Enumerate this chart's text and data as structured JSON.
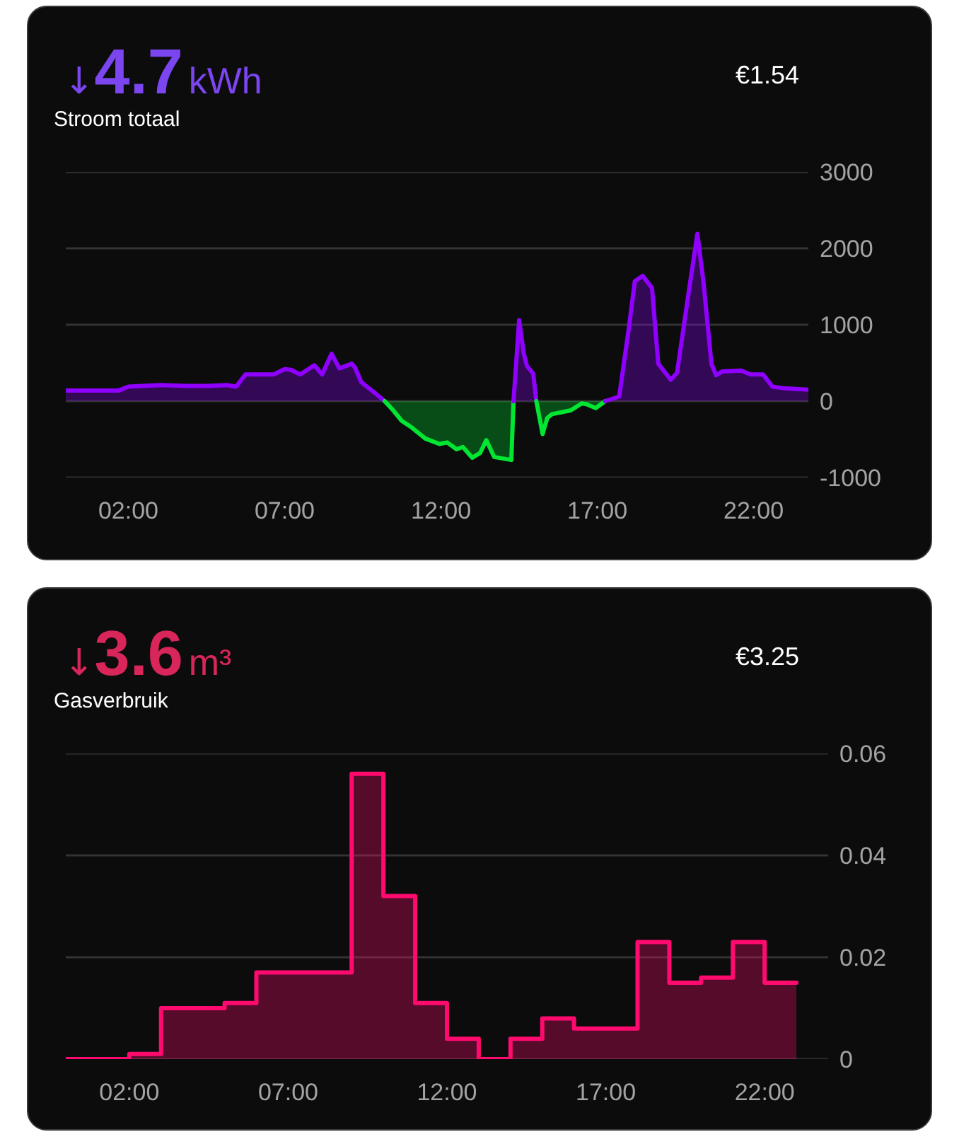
{
  "chart_data": [
    {
      "type": "area",
      "title": "Stroom totaal",
      "annotations": [
        "↓",
        "4.7",
        "kWh",
        "€1.54"
      ],
      "xlim": [
        0,
        23.75
      ],
      "xticks": [
        {
          "value": 2,
          "label": "02:00"
        },
        {
          "value": 7,
          "label": "07:00"
        },
        {
          "value": 12,
          "label": "12:00"
        },
        {
          "value": 17,
          "label": "17:00"
        },
        {
          "value": 22,
          "label": "22:00"
        }
      ],
      "ylim": [
        -1000,
        3000
      ],
      "yticks": [
        -1000,
        0,
        1000,
        2000,
        3000
      ],
      "grid": "y",
      "series": [
        {
          "color": "#8f00ff",
          "x": [
            0,
            1.7,
            2,
            2.45,
            3.05,
            3.8,
            4.55,
            5.15,
            5.45,
            5.75,
            6.65,
            7,
            7.2,
            7.5,
            7.95,
            8.2,
            8.5,
            8.75,
            9.15,
            9.25,
            9.45,
            9.85,
            10.2
          ],
          "values": [
            140,
            140,
            190,
            200,
            210,
            200,
            200,
            210,
            190,
            350,
            350,
            420,
            410,
            350,
            470,
            350,
            620,
            430,
            490,
            440,
            250,
            120,
            0
          ]
        },
        {
          "color": "#00e632",
          "x": [
            10.2,
            10.45,
            10.75,
            11.05,
            11.5,
            11.95,
            12.2,
            12.5,
            12.7,
            13,
            13.25,
            13.45,
            13.7,
            14.25,
            14.32
          ],
          "values": [
            0,
            -110,
            -260,
            -340,
            -490,
            -560,
            -540,
            -630,
            -600,
            -740,
            -680,
            -510,
            -730,
            -770,
            0
          ]
        },
        {
          "color": "#8f00ff",
          "x": [
            14.32,
            14.5,
            14.65,
            14.75,
            14.95,
            15.05
          ],
          "values": [
            0,
            1060,
            620,
            460,
            360,
            0
          ]
        },
        {
          "color": "#00e632",
          "x": [
            15.05,
            15.25,
            15.4,
            15.55,
            16.15,
            16.5,
            16.65,
            16.95,
            17.25
          ],
          "values": [
            0,
            -430,
            -220,
            -170,
            -120,
            -30,
            -40,
            -90,
            0
          ]
        },
        {
          "color": "#8f00ff",
          "x": [
            17.25,
            17.7,
            18,
            18.2,
            18.45,
            18.75,
            18.95,
            19.35,
            19.55,
            19.9,
            20.2,
            20.4,
            20.65,
            20.8,
            21,
            21.6,
            21.9,
            22.3,
            22.6,
            22.95,
            23.75
          ],
          "values": [
            0,
            60,
            930,
            1570,
            1640,
            1480,
            490,
            280,
            370,
            1360,
            2190,
            1540,
            490,
            340,
            390,
            400,
            350,
            350,
            190,
            170,
            150
          ]
        }
      ]
    },
    {
      "type": "step",
      "title": "Gasverbruik",
      "annotations": [
        "↓",
        "3.6",
        "m³",
        "€3.25"
      ],
      "x": [
        0,
        1,
        2,
        3,
        4,
        5,
        6,
        7,
        8,
        9,
        10,
        11,
        12,
        13,
        14,
        15,
        16,
        17,
        18,
        19,
        20,
        21,
        22,
        23
      ],
      "xlim": [
        0,
        24
      ],
      "xticks": [
        {
          "value": 2,
          "label": "02:00"
        },
        {
          "value": 7,
          "label": "07:00"
        },
        {
          "value": 12,
          "label": "12:00"
        },
        {
          "value": 17,
          "label": "17:00"
        },
        {
          "value": 22,
          "label": "22:00"
        }
      ],
      "ylim": [
        0,
        0.06
      ],
      "yticks": [
        0,
        0.02,
        0.04,
        0.06
      ],
      "grid": "y",
      "values": [
        0,
        0,
        0.001,
        0.01,
        0.01,
        0.011,
        0.017,
        0.017,
        0.017,
        0.056,
        0.032,
        0.011,
        0.004,
        0,
        0.004,
        0.008,
        0.006,
        0.006,
        0.023,
        0.015,
        0.016,
        0.023,
        0.015,
        0.015
      ],
      "color": "#ff0a6e"
    }
  ]
}
